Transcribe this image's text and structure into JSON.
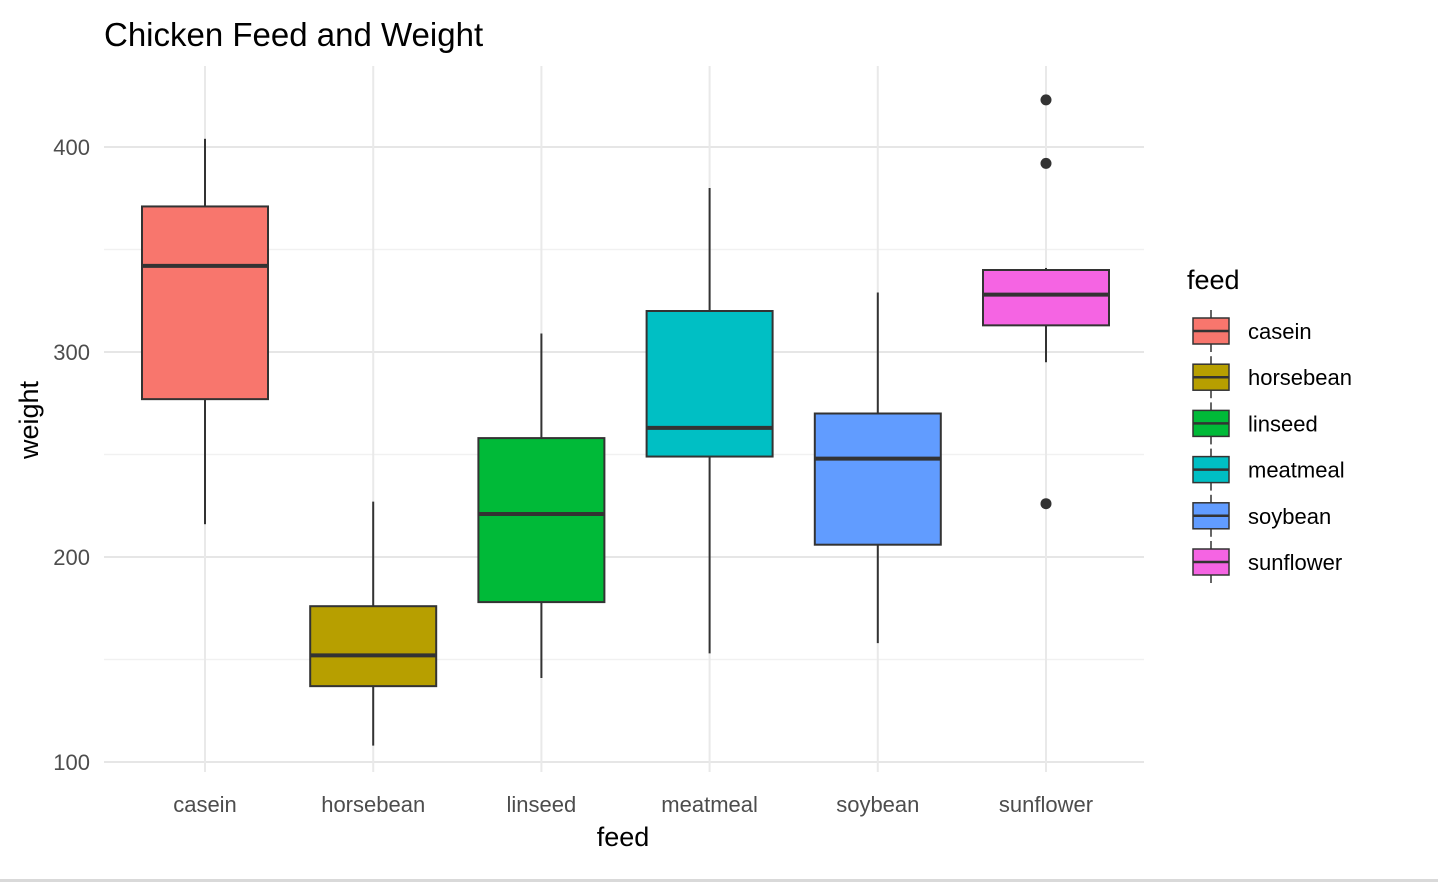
{
  "chart_data": {
    "type": "boxplot",
    "title": "Chicken Feed and Weight",
    "xlabel": "feed",
    "ylabel": "weight",
    "ylim": [
      95,
      440
    ],
    "yticks": [
      100,
      200,
      300,
      400
    ],
    "grid": true,
    "legend": {
      "title": "feed",
      "position": "right"
    },
    "categories": [
      "casein",
      "horsebean",
      "linseed",
      "meatmeal",
      "soybean",
      "sunflower"
    ],
    "series": [
      {
        "name": "casein",
        "color": "#F8766D",
        "whisker_low": 216,
        "q1": 277,
        "median": 342,
        "q3": 371,
        "whisker_high": 404,
        "outliers": []
      },
      {
        "name": "horsebean",
        "color": "#B79F00",
        "whisker_low": 108,
        "q1": 137,
        "median": 152,
        "q3": 176,
        "whisker_high": 227,
        "outliers": []
      },
      {
        "name": "linseed",
        "color": "#00BA38",
        "whisker_low": 141,
        "q1": 178,
        "median": 221,
        "q3": 258,
        "whisker_high": 309,
        "outliers": []
      },
      {
        "name": "meatmeal",
        "color": "#00BFC4",
        "whisker_low": 153,
        "q1": 249,
        "median": 263,
        "q3": 320,
        "whisker_high": 380,
        "outliers": []
      },
      {
        "name": "soybean",
        "color": "#619CFF",
        "whisker_low": 158,
        "q1": 206,
        "median": 248,
        "q3": 270,
        "whisker_high": 329,
        "outliers": []
      },
      {
        "name": "sunflower",
        "color": "#F564E3",
        "whisker_low": 295,
        "q1": 313,
        "median": 328,
        "q3": 340,
        "whisker_high": 341,
        "outliers": [
          423,
          392,
          226
        ]
      }
    ]
  }
}
